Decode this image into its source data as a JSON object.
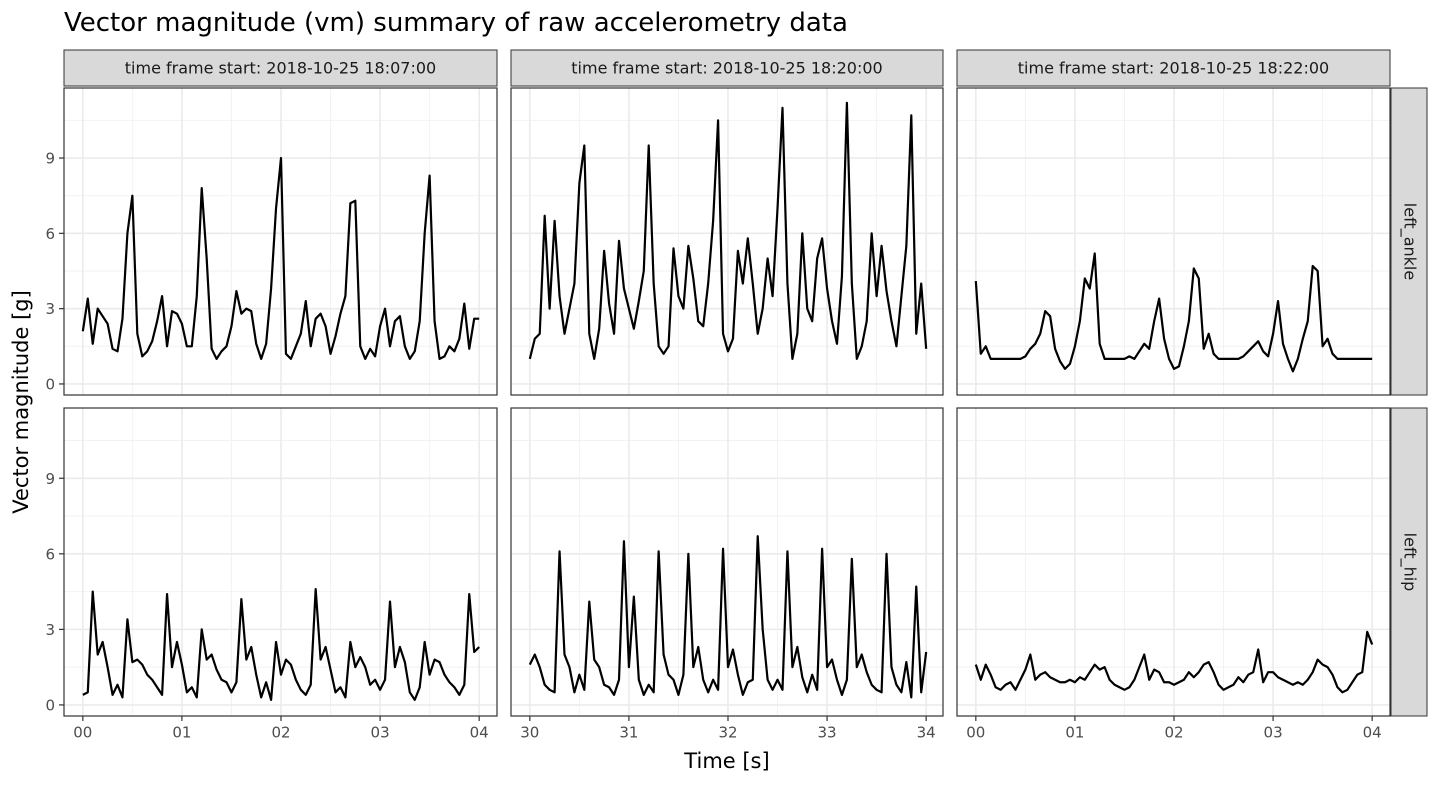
{
  "title": "Vector magnitude (vm) summary of raw accelerometry data",
  "x_label": "Time [s]",
  "y_label": "Vector magnitude [g]",
  "column_labels": [
    "time frame start: 2018-10-25 18:07:00",
    "time frame start: 2018-10-25 18:20:00",
    "time frame start: 2018-10-25 18:22:00"
  ],
  "row_labels": [
    "left_ankle",
    "left_hip"
  ],
  "chart_data": [
    {
      "type": "line",
      "color": "#000000",
      "grid": true,
      "x": [
        0,
        0.05,
        0.1,
        0.15,
        0.2,
        0.25,
        0.3,
        0.35,
        0.4,
        0.45,
        0.5,
        0.55,
        0.6,
        0.65,
        0.7,
        0.75,
        0.8,
        0.85,
        0.9,
        0.95,
        1,
        1.05,
        1.1,
        1.15,
        1.2,
        1.25,
        1.3,
        1.35,
        1.4,
        1.45,
        1.5,
        1.55,
        1.6,
        1.65,
        1.7,
        1.75,
        1.8,
        1.85,
        1.9,
        1.95,
        2,
        2.05,
        2.1,
        2.15,
        2.2,
        2.25,
        2.3,
        2.35,
        2.4,
        2.45,
        2.5,
        2.55,
        2.6,
        2.65,
        2.7,
        2.75,
        2.8,
        2.85,
        2.9,
        2.95,
        3,
        3.05,
        3.1,
        3.15,
        3.2,
        3.25,
        3.3,
        3.35,
        3.4,
        3.45,
        3.5,
        3.55,
        3.6,
        3.65,
        3.7,
        3.75,
        3.8,
        3.85,
        3.9,
        3.95,
        4
      ],
      "values": [
        2.1,
        3.4,
        1.6,
        3.0,
        2.7,
        2.4,
        1.4,
        1.3,
        2.6,
        6.0,
        7.5,
        2.0,
        1.1,
        1.3,
        1.7,
        2.5,
        3.5,
        1.5,
        2.9,
        2.8,
        2.4,
        1.5,
        1.5,
        3.5,
        7.8,
        5.0,
        1.4,
        1.0,
        1.3,
        1.5,
        2.3,
        3.7,
        2.8,
        3.0,
        2.9,
        1.6,
        1.0,
        1.6,
        3.8,
        7.0,
        9.0,
        1.2,
        1.0,
        1.5,
        2.0,
        3.3,
        1.5,
        2.6,
        2.8,
        2.3,
        1.2,
        1.9,
        2.8,
        3.5,
        7.2,
        7.3,
        1.5,
        1.0,
        1.4,
        1.1,
        2.3,
        3.0,
        1.5,
        2.5,
        2.7,
        1.5,
        1.0,
        1.3,
        2.5,
        6.0,
        8.3,
        2.5,
        1.0,
        1.1,
        1.5,
        1.3,
        1.8,
        3.2,
        1.4,
        2.6,
        2.6
      ],
      "xlim": [
        -0.19,
        4.18
      ],
      "ylim": [
        -0.44,
        11.79
      ],
      "xticks": [
        {
          "value": 0,
          "label": "00"
        },
        {
          "value": 1,
          "label": "01"
        },
        {
          "value": 2,
          "label": "02"
        },
        {
          "value": 3,
          "label": "03"
        },
        {
          "value": 4,
          "label": "04"
        }
      ],
      "minor_xticks": [
        0.5,
        1.5,
        2.5,
        3.5
      ],
      "yticks": [
        0,
        3,
        6,
        9
      ],
      "minor_yticks": [
        1.5,
        4.5,
        7.5,
        10.5
      ]
    },
    {
      "type": "line",
      "color": "#000000",
      "grid": true,
      "x": [
        30,
        30.05,
        30.1,
        30.15,
        30.2,
        30.25,
        30.3,
        30.35,
        30.4,
        30.45,
        30.5,
        30.55,
        30.6,
        30.65,
        30.7,
        30.75,
        30.8,
        30.85,
        30.9,
        30.95,
        31,
        31.05,
        31.1,
        31.15,
        31.2,
        31.25,
        31.3,
        31.35,
        31.4,
        31.45,
        31.5,
        31.55,
        31.6,
        31.65,
        31.7,
        31.75,
        31.8,
        31.85,
        31.9,
        31.95,
        32,
        32.05,
        32.1,
        32.15,
        32.2,
        32.25,
        32.3,
        32.35,
        32.4,
        32.45,
        32.5,
        32.55,
        32.6,
        32.65,
        32.7,
        32.75,
        32.8,
        32.85,
        32.9,
        32.95,
        33,
        33.05,
        33.1,
        33.15,
        33.2,
        33.25,
        33.3,
        33.35,
        33.4,
        33.45,
        33.5,
        33.55,
        33.6,
        33.65,
        33.7,
        33.75,
        33.8,
        33.85,
        33.9,
        33.95,
        34
      ],
      "values": [
        1.0,
        1.8,
        2.0,
        6.7,
        3.0,
        6.5,
        3.5,
        2.0,
        3.0,
        4.0,
        8.0,
        9.5,
        2.0,
        1.0,
        2.2,
        5.3,
        3.2,
        2.0,
        5.7,
        3.8,
        3.0,
        2.2,
        3.3,
        4.5,
        9.5,
        4.0,
        1.5,
        1.2,
        1.5,
        5.4,
        3.5,
        3.0,
        5.5,
        4.2,
        2.5,
        2.3,
        4.0,
        6.5,
        10.5,
        2.0,
        1.3,
        1.8,
        5.3,
        4.0,
        5.8,
        4.0,
        2.0,
        3.0,
        5.0,
        3.5,
        7.0,
        11.0,
        4.0,
        1.0,
        2.0,
        6.0,
        3.0,
        2.5,
        5.0,
        5.8,
        3.8,
        2.5,
        1.6,
        4.3,
        11.2,
        4.0,
        1.0,
        1.5,
        2.5,
        6.0,
        3.5,
        5.5,
        3.7,
        2.5,
        1.5,
        3.5,
        5.5,
        10.7,
        2.0,
        4.0,
        1.4
      ],
      "xlim": [
        29.81,
        34.17
      ],
      "ylim": [
        -0.44,
        11.79
      ],
      "xticks": [
        30,
        31,
        32,
        33,
        34
      ],
      "minor_xticks": [
        30.5,
        31.5,
        32.5,
        33.5
      ],
      "yticks": [
        0,
        3,
        6,
        9
      ],
      "minor_yticks": [
        1.5,
        4.5,
        7.5,
        10.5
      ]
    },
    {
      "type": "line",
      "color": "#000000",
      "grid": true,
      "x": [
        0,
        0.05,
        0.1,
        0.15,
        0.2,
        0.25,
        0.3,
        0.35,
        0.4,
        0.45,
        0.5,
        0.55,
        0.6,
        0.65,
        0.7,
        0.75,
        0.8,
        0.85,
        0.9,
        0.95,
        1,
        1.05,
        1.1,
        1.15,
        1.2,
        1.25,
        1.3,
        1.35,
        1.4,
        1.45,
        1.5,
        1.55,
        1.6,
        1.65,
        1.7,
        1.75,
        1.8,
        1.85,
        1.9,
        1.95,
        2,
        2.05,
        2.1,
        2.15,
        2.2,
        2.25,
        2.3,
        2.35,
        2.4,
        2.45,
        2.5,
        2.55,
        2.6,
        2.65,
        2.7,
        2.75,
        2.8,
        2.85,
        2.9,
        2.95,
        3,
        3.05,
        3.1,
        3.15,
        3.2,
        3.25,
        3.3,
        3.35,
        3.4,
        3.45,
        3.5,
        3.55,
        3.6,
        3.65,
        3.7,
        3.75,
        3.8,
        3.85,
        3.9,
        3.95,
        4
      ],
      "values": [
        4.1,
        1.2,
        1.5,
        1.0,
        1.0,
        1.0,
        1.0,
        1.0,
        1.0,
        1.0,
        1.1,
        1.4,
        1.6,
        2.0,
        2.9,
        2.7,
        1.4,
        0.9,
        0.6,
        0.8,
        1.5,
        2.5,
        4.2,
        3.8,
        5.2,
        1.6,
        1.0,
        1.0,
        1.0,
        1.0,
        1.0,
        1.1,
        1.0,
        1.3,
        1.6,
        1.4,
        2.5,
        3.4,
        1.8,
        1.0,
        0.6,
        0.7,
        1.5,
        2.5,
        4.6,
        4.2,
        1.4,
        2.0,
        1.2,
        1.0,
        1.0,
        1.0,
        1.0,
        1.0,
        1.1,
        1.3,
        1.5,
        1.7,
        1.3,
        1.1,
        2.0,
        3.3,
        1.6,
        1.0,
        0.5,
        1.0,
        1.8,
        2.5,
        4.7,
        4.5,
        1.5,
        1.8,
        1.2,
        1.0,
        1.0,
        1.0,
        1.0,
        1.0,
        1.0,
        1.0,
        1.0
      ],
      "xlim": [
        -0.19,
        4.18
      ],
      "ylim": [
        -0.44,
        11.79
      ],
      "xticks": [
        {
          "value": 0,
          "label": "00"
        },
        {
          "value": 1,
          "label": "01"
        },
        {
          "value": 2,
          "label": "02"
        },
        {
          "value": 3,
          "label": "03"
        },
        {
          "value": 4,
          "label": "04"
        }
      ],
      "minor_xticks": [
        0.5,
        1.5,
        2.5,
        3.5
      ],
      "yticks": [
        0,
        3,
        6,
        9
      ],
      "minor_yticks": [
        1.5,
        4.5,
        7.5,
        10.5
      ]
    },
    {
      "type": "line",
      "color": "#000000",
      "grid": true,
      "x": [
        0,
        0.05,
        0.1,
        0.15,
        0.2,
        0.25,
        0.3,
        0.35,
        0.4,
        0.45,
        0.5,
        0.55,
        0.6,
        0.65,
        0.7,
        0.75,
        0.8,
        0.85,
        0.9,
        0.95,
        1,
        1.05,
        1.1,
        1.15,
        1.2,
        1.25,
        1.3,
        1.35,
        1.4,
        1.45,
        1.5,
        1.55,
        1.6,
        1.65,
        1.7,
        1.75,
        1.8,
        1.85,
        1.9,
        1.95,
        2,
        2.05,
        2.1,
        2.15,
        2.2,
        2.25,
        2.3,
        2.35,
        2.4,
        2.45,
        2.5,
        2.55,
        2.6,
        2.65,
        2.7,
        2.75,
        2.8,
        2.85,
        2.9,
        2.95,
        3,
        3.05,
        3.1,
        3.15,
        3.2,
        3.25,
        3.3,
        3.35,
        3.4,
        3.45,
        3.5,
        3.55,
        3.6,
        3.65,
        3.7,
        3.75,
        3.8,
        3.85,
        3.9,
        3.95,
        4
      ],
      "values": [
        0.4,
        0.5,
        4.5,
        2.0,
        2.5,
        1.5,
        0.4,
        0.8,
        0.3,
        3.4,
        1.7,
        1.8,
        1.6,
        1.2,
        1.0,
        0.7,
        0.4,
        4.4,
        1.5,
        2.5,
        1.6,
        0.5,
        0.7,
        0.3,
        3.0,
        1.8,
        2.0,
        1.4,
        1.0,
        0.9,
        0.5,
        0.9,
        4.2,
        1.8,
        2.3,
        1.2,
        0.3,
        0.9,
        0.2,
        2.5,
        1.2,
        1.8,
        1.6,
        1.0,
        0.6,
        0.4,
        0.8,
        4.6,
        1.8,
        2.3,
        1.4,
        0.5,
        0.7,
        0.3,
        2.5,
        1.5,
        1.9,
        1.5,
        0.8,
        1.0,
        0.6,
        1.0,
        4.1,
        1.5,
        2.3,
        1.7,
        0.5,
        0.2,
        0.7,
        2.5,
        1.2,
        1.8,
        1.7,
        1.2,
        0.9,
        0.7,
        0.4,
        0.8,
        4.4,
        2.1,
        2.3
      ],
      "xlim": [
        -0.19,
        4.18
      ],
      "ylim": [
        -0.44,
        11.79
      ],
      "xticks": [
        {
          "value": 0,
          "label": "00"
        },
        {
          "value": 1,
          "label": "01"
        },
        {
          "value": 2,
          "label": "02"
        },
        {
          "value": 3,
          "label": "03"
        },
        {
          "value": 4,
          "label": "04"
        }
      ],
      "minor_xticks": [
        0.5,
        1.5,
        2.5,
        3.5
      ],
      "yticks": [
        0,
        3,
        6,
        9
      ],
      "minor_yticks": [
        1.5,
        4.5,
        7.5,
        10.5
      ]
    },
    {
      "type": "line",
      "color": "#000000",
      "grid": true,
      "x": [
        30,
        30.05,
        30.1,
        30.15,
        30.2,
        30.25,
        30.3,
        30.35,
        30.4,
        30.45,
        30.5,
        30.55,
        30.6,
        30.65,
        30.7,
        30.75,
        30.8,
        30.85,
        30.9,
        30.95,
        31,
        31.05,
        31.1,
        31.15,
        31.2,
        31.25,
        31.3,
        31.35,
        31.4,
        31.45,
        31.5,
        31.55,
        31.6,
        31.65,
        31.7,
        31.75,
        31.8,
        31.85,
        31.9,
        31.95,
        32,
        32.05,
        32.1,
        32.15,
        32.2,
        32.25,
        32.3,
        32.35,
        32.4,
        32.45,
        32.5,
        32.55,
        32.6,
        32.65,
        32.7,
        32.75,
        32.8,
        32.85,
        32.9,
        32.95,
        33,
        33.05,
        33.1,
        33.15,
        33.2,
        33.25,
        33.3,
        33.35,
        33.4,
        33.45,
        33.5,
        33.55,
        33.6,
        33.65,
        33.7,
        33.75,
        33.8,
        33.85,
        33.9,
        33.95,
        34
      ],
      "values": [
        1.6,
        2.0,
        1.5,
        0.8,
        0.6,
        0.5,
        6.1,
        2.0,
        1.5,
        0.5,
        1.2,
        0.6,
        4.1,
        1.8,
        1.5,
        0.8,
        0.7,
        0.4,
        1.0,
        6.5,
        1.5,
        4.3,
        1.0,
        0.4,
        0.8,
        0.5,
        6.1,
        2.0,
        1.2,
        1.0,
        0.4,
        1.2,
        6.0,
        1.5,
        2.3,
        1.0,
        0.5,
        1.0,
        0.6,
        6.2,
        1.5,
        2.2,
        1.2,
        0.4,
        0.9,
        1.0,
        6.7,
        3.0,
        1.0,
        0.6,
        1.0,
        0.6,
        6.1,
        1.5,
        2.3,
        1.1,
        0.5,
        1.2,
        0.6,
        6.2,
        1.5,
        1.8,
        1.0,
        0.4,
        1.0,
        5.8,
        1.5,
        2.0,
        1.3,
        0.8,
        0.6,
        0.5,
        6.0,
        1.5,
        0.8,
        0.5,
        1.7,
        0.3,
        4.7,
        0.5,
        2.1
      ],
      "xlim": [
        29.81,
        34.17
      ],
      "ylim": [
        -0.44,
        11.79
      ],
      "xticks": [
        30,
        31,
        32,
        33,
        34
      ],
      "minor_xticks": [
        30.5,
        31.5,
        32.5,
        33.5
      ],
      "yticks": [
        0,
        3,
        6,
        9
      ],
      "minor_yticks": [
        1.5,
        4.5,
        7.5,
        10.5
      ]
    },
    {
      "type": "line",
      "color": "#000000",
      "grid": true,
      "x": [
        0,
        0.05,
        0.1,
        0.15,
        0.2,
        0.25,
        0.3,
        0.35,
        0.4,
        0.45,
        0.5,
        0.55,
        0.6,
        0.65,
        0.7,
        0.75,
        0.8,
        0.85,
        0.9,
        0.95,
        1,
        1.05,
        1.1,
        1.15,
        1.2,
        1.25,
        1.3,
        1.35,
        1.4,
        1.45,
        1.5,
        1.55,
        1.6,
        1.65,
        1.7,
        1.75,
        1.8,
        1.85,
        1.9,
        1.95,
        2,
        2.05,
        2.1,
        2.15,
        2.2,
        2.25,
        2.3,
        2.35,
        2.4,
        2.45,
        2.5,
        2.55,
        2.6,
        2.65,
        2.7,
        2.75,
        2.8,
        2.85,
        2.9,
        2.95,
        3,
        3.05,
        3.1,
        3.15,
        3.2,
        3.25,
        3.3,
        3.35,
        3.4,
        3.45,
        3.5,
        3.55,
        3.6,
        3.65,
        3.7,
        3.75,
        3.8,
        3.85,
        3.9,
        3.95,
        4
      ],
      "values": [
        1.6,
        1.0,
        1.6,
        1.2,
        0.7,
        0.6,
        0.8,
        0.9,
        0.6,
        1.0,
        1.4,
        2.0,
        1.0,
        1.2,
        1.3,
        1.1,
        1.0,
        0.9,
        0.9,
        1.0,
        0.9,
        1.1,
        1.0,
        1.3,
        1.6,
        1.4,
        1.5,
        1.0,
        0.8,
        0.7,
        0.6,
        0.7,
        1.0,
        1.5,
        2.0,
        1.0,
        1.4,
        1.3,
        0.9,
        0.9,
        0.8,
        0.9,
        1.0,
        1.3,
        1.1,
        1.3,
        1.6,
        1.7,
        1.3,
        0.8,
        0.6,
        0.7,
        0.8,
        1.1,
        0.9,
        1.2,
        1.3,
        2.2,
        0.9,
        1.3,
        1.3,
        1.1,
        1.0,
        0.9,
        0.8,
        0.9,
        0.8,
        1.0,
        1.3,
        1.8,
        1.6,
        1.5,
        1.2,
        0.7,
        0.5,
        0.6,
        0.9,
        1.2,
        1.3,
        2.9,
        2.4
      ],
      "xlim": [
        -0.19,
        4.18
      ],
      "ylim": [
        -0.44,
        11.79
      ],
      "xticks": [
        {
          "value": 0,
          "label": "00"
        },
        {
          "value": 1,
          "label": "01"
        },
        {
          "value": 2,
          "label": "02"
        },
        {
          "value": 3,
          "label": "03"
        },
        {
          "value": 4,
          "label": "04"
        }
      ],
      "minor_xticks": [
        0.5,
        1.5,
        2.5,
        3.5
      ],
      "yticks": [
        0,
        3,
        6,
        9
      ],
      "minor_yticks": [
        1.5,
        4.5,
        7.5,
        10.5
      ]
    }
  ]
}
